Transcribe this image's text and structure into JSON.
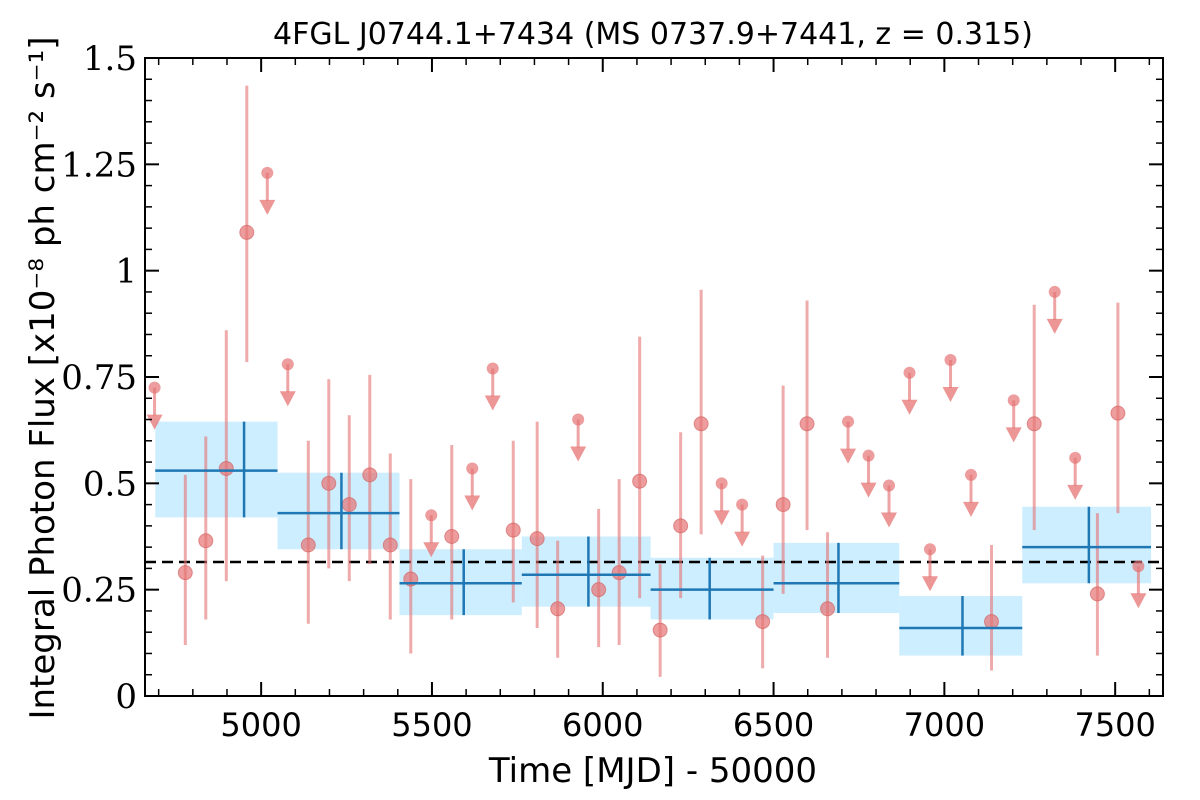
{
  "chart_data": {
    "type": "scatter",
    "title": "4FGL J0744.1+7434 (MS 0737.9+7441, z = 0.315)",
    "xlabel": "Time [MJD] - 50000",
    "ylabel": "Integral Photon Flux [x10⁻⁸ ph cm⁻² s⁻¹]",
    "xlim": [
      4660,
      7640
    ],
    "ylim": [
      0,
      1.5
    ],
    "x_ticks": [
      5000,
      5500,
      6000,
      6500,
      7000,
      7500
    ],
    "x_tick_labels": [
      "5000",
      "5500",
      "6000",
      "6500",
      "7000",
      "7500"
    ],
    "y_ticks": [
      0,
      0.25,
      0.5,
      0.75,
      1,
      1.25,
      1.5
    ],
    "y_tick_labels": [
      "0",
      "0.25",
      "0.5",
      "0.75",
      "1",
      "1.25",
      "1.5"
    ],
    "reference_level": 0.315,
    "colors": {
      "points": "#e57373",
      "bin_line": "#1f77b4",
      "bin_band": "#cdeefe",
      "reference": "#000000"
    },
    "points": [
      {
        "x": 4778,
        "y": 0.29,
        "lo": 0.12,
        "hi": 0.52
      },
      {
        "x": 4838,
        "y": 0.365,
        "lo": 0.18,
        "hi": 0.61
      },
      {
        "x": 4898,
        "y": 0.535,
        "lo": 0.27,
        "hi": 0.86
      },
      {
        "x": 4958,
        "y": 1.09,
        "lo": 0.785,
        "hi": 1.435
      },
      {
        "x": 5138,
        "y": 0.355,
        "lo": 0.17,
        "hi": 0.6
      },
      {
        "x": 5198,
        "y": 0.5,
        "lo": 0.3,
        "hi": 0.745
      },
      {
        "x": 5258,
        "y": 0.45,
        "lo": 0.27,
        "hi": 0.66
      },
      {
        "x": 5318,
        "y": 0.52,
        "lo": 0.31,
        "hi": 0.755
      },
      {
        "x": 5378,
        "y": 0.355,
        "lo": 0.18,
        "hi": 0.57
      },
      {
        "x": 5438,
        "y": 0.275,
        "lo": 0.1,
        "hi": 0.51
      },
      {
        "x": 5558,
        "y": 0.375,
        "lo": 0.18,
        "hi": 0.59
      },
      {
        "x": 5738,
        "y": 0.39,
        "lo": 0.22,
        "hi": 0.6
      },
      {
        "x": 5808,
        "y": 0.37,
        "lo": 0.16,
        "hi": 0.645
      },
      {
        "x": 5868,
        "y": 0.205,
        "lo": 0.09,
        "hi": 0.365
      },
      {
        "x": 5988,
        "y": 0.25,
        "lo": 0.115,
        "hi": 0.44
      },
      {
        "x": 6048,
        "y": 0.29,
        "lo": 0.12,
        "hi": 0.51
      },
      {
        "x": 6108,
        "y": 0.505,
        "lo": 0.23,
        "hi": 0.845
      },
      {
        "x": 6168,
        "y": 0.155,
        "lo": 0.045,
        "hi": 0.31
      },
      {
        "x": 6228,
        "y": 0.4,
        "lo": 0.23,
        "hi": 0.62
      },
      {
        "x": 6288,
        "y": 0.64,
        "lo": 0.38,
        "hi": 0.955
      },
      {
        "x": 6468,
        "y": 0.175,
        "lo": 0.065,
        "hi": 0.33
      },
      {
        "x": 6528,
        "y": 0.45,
        "lo": 0.24,
        "hi": 0.73
      },
      {
        "x": 6598,
        "y": 0.64,
        "lo": 0.39,
        "hi": 0.93
      },
      {
        "x": 6658,
        "y": 0.205,
        "lo": 0.09,
        "hi": 0.385
      },
      {
        "x": 7138,
        "y": 0.175,
        "lo": 0.06,
        "hi": 0.355
      },
      {
        "x": 7263,
        "y": 0.64,
        "lo": 0.39,
        "hi": 0.92
      },
      {
        "x": 7448,
        "y": 0.24,
        "lo": 0.095,
        "hi": 0.43
      },
      {
        "x": 7508,
        "y": 0.665,
        "lo": 0.43,
        "hi": 0.925
      }
    ],
    "upper_limits": [
      {
        "x": 4688,
        "y": 0.725
      },
      {
        "x": 5018,
        "y": 1.23
      },
      {
        "x": 5078,
        "y": 0.78
      },
      {
        "x": 5498,
        "y": 0.425
      },
      {
        "x": 5618,
        "y": 0.535
      },
      {
        "x": 5678,
        "y": 0.77
      },
      {
        "x": 5928,
        "y": 0.65
      },
      {
        "x": 6348,
        "y": 0.5
      },
      {
        "x": 6408,
        "y": 0.45
      },
      {
        "x": 6718,
        "y": 0.645
      },
      {
        "x": 6778,
        "y": 0.565
      },
      {
        "x": 6838,
        "y": 0.495
      },
      {
        "x": 6898,
        "y": 0.76
      },
      {
        "x": 6958,
        "y": 0.345
      },
      {
        "x": 7018,
        "y": 0.79
      },
      {
        "x": 7078,
        "y": 0.52
      },
      {
        "x": 7203,
        "y": 0.695
      },
      {
        "x": 7323,
        "y": 0.95
      },
      {
        "x": 7383,
        "y": 0.56
      },
      {
        "x": 7568,
        "y": 0.305
      }
    ],
    "bins": [
      {
        "x0": 4690,
        "x1": 5048,
        "xc": 4950,
        "y": 0.53,
        "lo": 0.42,
        "hi": 0.645
      },
      {
        "x0": 5048,
        "x1": 5405,
        "xc": 5235,
        "y": 0.43,
        "lo": 0.345,
        "hi": 0.525
      },
      {
        "x0": 5405,
        "x1": 5763,
        "xc": 5593,
        "y": 0.265,
        "lo": 0.19,
        "hi": 0.345
      },
      {
        "x0": 5763,
        "x1": 6140,
        "xc": 5958,
        "y": 0.285,
        "lo": 0.21,
        "hi": 0.375
      },
      {
        "x0": 6140,
        "x1": 6500,
        "xc": 6313,
        "y": 0.25,
        "lo": 0.18,
        "hi": 0.325
      },
      {
        "x0": 6500,
        "x1": 6868,
        "xc": 6690,
        "y": 0.265,
        "lo": 0.195,
        "hi": 0.36
      },
      {
        "x0": 6868,
        "x1": 7228,
        "xc": 7053,
        "y": 0.16,
        "lo": 0.095,
        "hi": 0.235
      },
      {
        "x0": 7228,
        "x1": 7605,
        "xc": 7423,
        "y": 0.35,
        "lo": 0.265,
        "hi": 0.445
      }
    ]
  }
}
